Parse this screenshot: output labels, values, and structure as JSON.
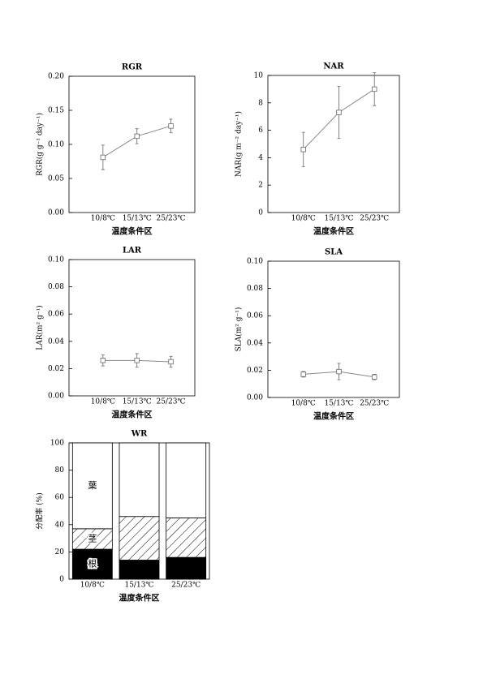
{
  "chart_data": [
    {
      "type": "line",
      "title": "RGR",
      "xlabel": "温度条件区",
      "ylabel": "RGR(g g⁻¹ day⁻¹)",
      "categories": [
        "10/8℃",
        "15/13℃",
        "25/23℃"
      ],
      "values": [
        0.081,
        0.112,
        0.127
      ],
      "errors": [
        0.018,
        0.011,
        0.01
      ],
      "color": "#888888",
      "ylim": [
        0,
        0.2
      ],
      "yticks": [
        {
          "value": 0,
          "label": "0.00"
        },
        {
          "value": 0.05,
          "label": "0.05"
        },
        {
          "value": 0.1,
          "label": "0.10"
        },
        {
          "value": 0.15,
          "label": "0.15"
        },
        {
          "value": 0.2,
          "label": "0.20"
        }
      ]
    },
    {
      "type": "line",
      "title": "NAR",
      "xlabel": "温度条件区",
      "ylabel": "NAR(g m⁻² day⁻¹)",
      "categories": [
        "10/8℃",
        "15/13℃",
        "25/23℃"
      ],
      "values": [
        4.6,
        7.3,
        9.0
      ],
      "errors": [
        1.25,
        1.9,
        1.2
      ],
      "color": "#888888",
      "ylim": [
        0,
        10
      ],
      "yticks": [
        0,
        2,
        4,
        6,
        8,
        10
      ]
    },
    {
      "type": "line",
      "title": "LAR",
      "xlabel": "温度条件区",
      "ylabel": "LAR(m² g⁻¹)",
      "categories": [
        "10/8℃",
        "15/13℃",
        "25/23℃"
      ],
      "values": [
        0.026,
        0.026,
        0.025
      ],
      "errors": [
        0.004,
        0.005,
        0.004
      ],
      "color": "#888888",
      "ylim": [
        0,
        0.1
      ],
      "yticks": [
        {
          "value": 0,
          "label": "0.00"
        },
        {
          "value": 0.02,
          "label": "0.02"
        },
        {
          "value": 0.04,
          "label": "0.04"
        },
        {
          "value": 0.06,
          "label": "0.06"
        },
        {
          "value": 0.08,
          "label": "0.08"
        },
        {
          "value": 0.1,
          "label": "0.10"
        }
      ]
    },
    {
      "type": "line",
      "title": "SLA",
      "xlabel": "温度条件区",
      "ylabel": "SLA(m² g⁻¹)",
      "categories": [
        "10/8℃",
        "15/13℃",
        "25/23℃"
      ],
      "values": [
        0.017,
        0.019,
        0.015
      ],
      "errors": [
        0.002,
        0.006,
        0.002
      ],
      "color": "#888888",
      "ylim": [
        0,
        0.1
      ],
      "yticks": [
        {
          "value": 0,
          "label": "0.00"
        },
        {
          "value": 0.02,
          "label": "0.02"
        },
        {
          "value": 0.04,
          "label": "0.04"
        },
        {
          "value": 0.06,
          "label": "0.06"
        },
        {
          "value": 0.08,
          "label": "0.08"
        },
        {
          "value": 0.1,
          "label": "0.10"
        }
      ]
    },
    {
      "type": "stacked_bar",
      "title": "WR",
      "xlabel": "温度条件区",
      "ylabel": "分配率 (%)",
      "categories": [
        "10/8℃",
        "15/13℃",
        "25/23℃"
      ],
      "series": [
        {
          "name": "根",
          "color": "#000000",
          "values": [
            22,
            14,
            16
          ]
        },
        {
          "name": "茎",
          "color": "#000000",
          "hatch": true,
          "values": [
            15,
            32,
            29
          ]
        },
        {
          "name": "葉",
          "color": "#ffffff",
          "values": [
            63,
            54,
            55
          ]
        }
      ],
      "ylim": [
        0,
        100
      ],
      "yticks": [
        0,
        20,
        40,
        60,
        80,
        100
      ]
    }
  ]
}
